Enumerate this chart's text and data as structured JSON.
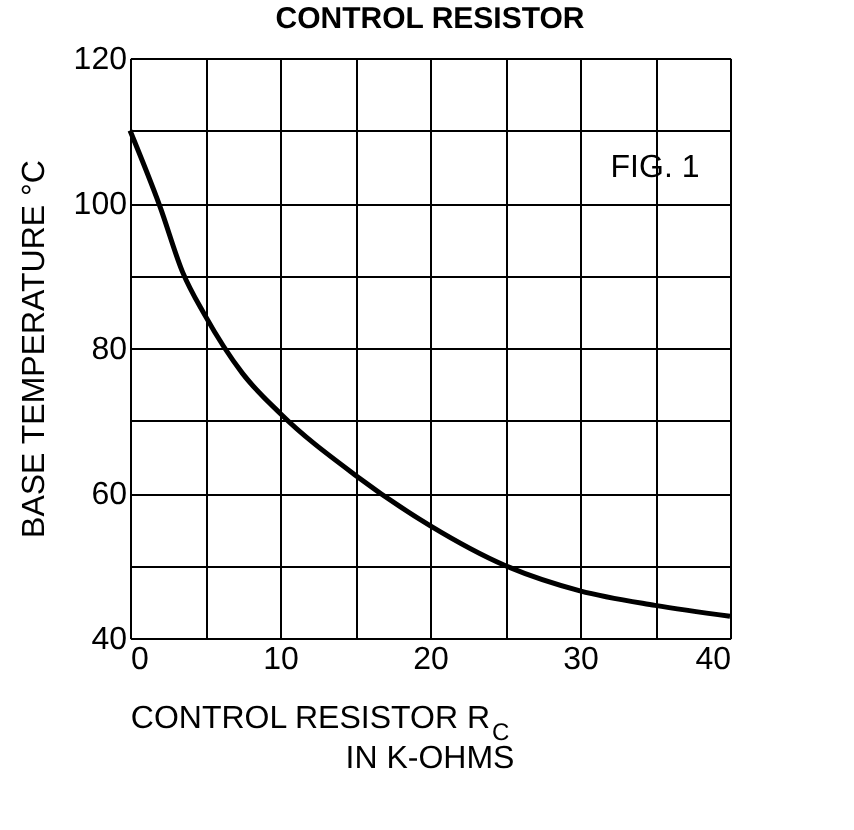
{
  "chart_data": {
    "type": "line",
    "title": "CONTROL RESISTOR",
    "xlabel": "CONTROL RESISTOR  R$_{C}$\nIN K-OHMS",
    "ylabel": "BASE TEMPERATURE °C",
    "annotations": [
      "FIG. 1"
    ],
    "series": [
      {
        "color": "#000000",
        "x": [
          0,
          2,
          3.5,
          5,
          7.5,
          10,
          15,
          20,
          25,
          30,
          35,
          40
        ],
        "values": [
          110,
          99.5,
          90.5,
          84.5,
          76.5,
          71,
          62.5,
          55.5,
          50,
          46.5,
          44.5,
          43
        ]
      }
    ],
    "xlim": [
      0,
      40
    ],
    "ylim": [
      40,
      120
    ],
    "xticks": [
      0,
      {
        "value": 5,
        "label": null
      },
      10,
      {
        "value": 15,
        "label": null
      },
      20,
      {
        "value": 25,
        "label": null
      },
      30,
      {
        "value": 35,
        "label": null
      },
      40
    ],
    "yticks": [
      40,
      {
        "value": 50,
        "label": null
      },
      60,
      {
        "value": 70,
        "label": null
      },
      80,
      {
        "value": 90,
        "label": null
      },
      100,
      {
        "value": 110,
        "label": null
      },
      120
    ],
    "grid": true,
    "marker": "none",
    "line_style": "solid"
  }
}
